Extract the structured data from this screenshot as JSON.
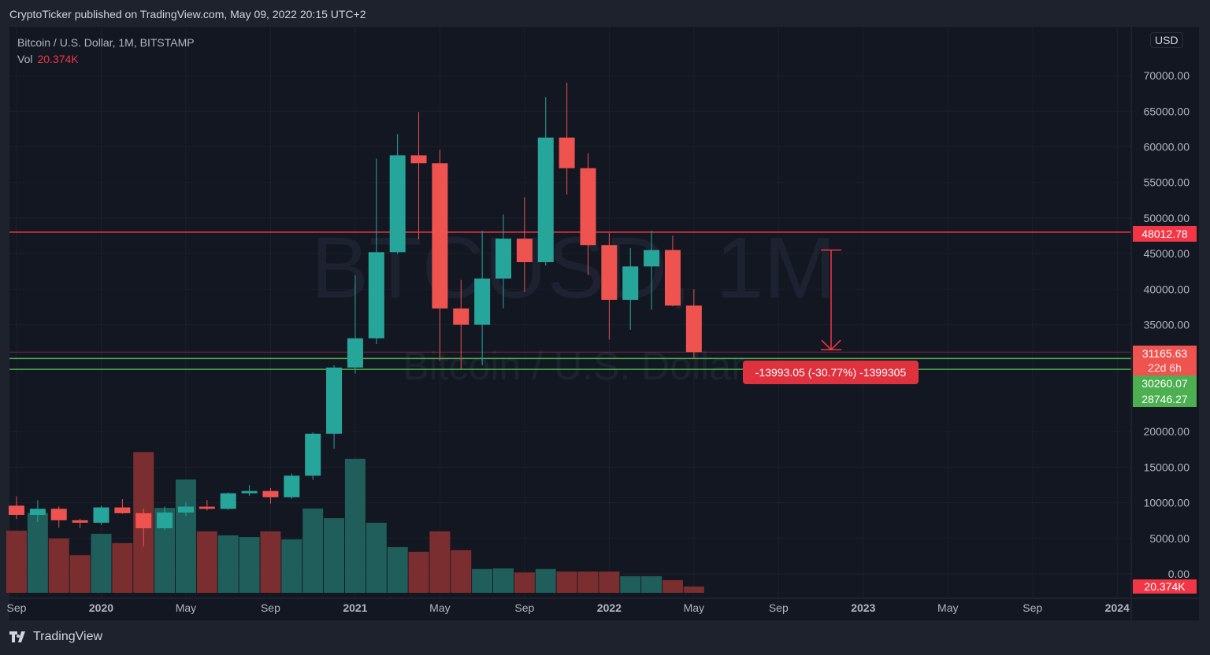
{
  "publisher": "CryptoTicker published on TradingView.com, May 09, 2022 20:15 UTC+2",
  "legend": {
    "title": "Bitcoin / U.S. Dollar, 1M, BITSTAMP",
    "vol_label": "Vol",
    "vol_value": "20.374K"
  },
  "watermark": {
    "symbol": "BTCUSD, 1M",
    "name": "Bitcoin / U.S. Dollar"
  },
  "currency_button": "USD",
  "footer": {
    "brand": "TradingView"
  },
  "colors": {
    "up": "#26a69a",
    "down": "#ef5350",
    "vol_up": "#1f5e5b",
    "vol_down": "#7a2e30",
    "resistance": "#f23645",
    "support": "#4caf50",
    "background": "#131722"
  },
  "price_labels": {
    "resistance": "48012.78",
    "last": "31165.63",
    "countdown": "22d 6h",
    "support_1": "30260.07",
    "support_2": "28746.27",
    "volume": "20.374K"
  },
  "measure": {
    "label": "-13993.05 (-30.77%) -1399305",
    "from": 45500,
    "to": 31500
  },
  "chart_data": {
    "type": "candlestick",
    "title": "Bitcoin / U.S. Dollar, 1M, BITSTAMP",
    "ylim": [
      0,
      75000
    ],
    "y_ticks": [
      "0.00",
      "5000.00",
      "10000.00",
      "15000.00",
      "20000.00",
      "35000.00",
      "40000.00",
      "45000.00",
      "50000.00",
      "55000.00",
      "60000.00",
      "65000.00",
      "70000.00"
    ],
    "x_ticks": [
      "Sep",
      "2020",
      "May",
      "Sep",
      "2021",
      "May",
      "Sep",
      "2022",
      "May",
      "Sep",
      "2023",
      "May",
      "Sep",
      "2024"
    ],
    "horizontal_lines": [
      48012.78,
      30260.07,
      28746.27,
      31165.63
    ],
    "months": [
      "2019-09",
      "2019-10",
      "2019-11",
      "2019-12",
      "2020-01",
      "2020-02",
      "2020-03",
      "2020-04",
      "2020-05",
      "2020-06",
      "2020-07",
      "2020-08",
      "2020-09",
      "2020-10",
      "2020-11",
      "2020-12",
      "2021-01",
      "2021-02",
      "2021-03",
      "2021-04",
      "2021-05",
      "2021-06",
      "2021-07",
      "2021-08",
      "2021-09",
      "2021-10",
      "2021-11",
      "2021-12",
      "2022-01",
      "2022-02",
      "2022-03",
      "2022-04",
      "2022-05"
    ],
    "ohlc": [
      [
        9590,
        10900,
        7730,
        8290
      ],
      [
        8290,
        10350,
        7300,
        9150
      ],
      [
        9150,
        9500,
        6500,
        7540
      ],
      [
        7540,
        7750,
        6430,
        7190
      ],
      [
        7190,
        9570,
        6850,
        9340
      ],
      [
        9340,
        10500,
        8450,
        8530
      ],
      [
        8530,
        9180,
        3850,
        6410
      ],
      [
        6410,
        9470,
        6150,
        8620
      ],
      [
        8620,
        10070,
        8120,
        9450
      ],
      [
        9450,
        10380,
        8900,
        9140
      ],
      [
        9140,
        11450,
        8980,
        11330
      ],
      [
        11330,
        12470,
        10960,
        11650
      ],
      [
        11650,
        12060,
        9880,
        10780
      ],
      [
        10780,
        14100,
        10550,
        13800
      ],
      [
        13800,
        19890,
        13210,
        19700
      ],
      [
        19700,
        29300,
        17600,
        28990
      ],
      [
        28990,
        41950,
        28130,
        33100
      ],
      [
        33100,
        58350,
        32300,
        45200
      ],
      [
        45200,
        61780,
        44950,
        58800
      ],
      [
        58800,
        64900,
        47000,
        57700
      ],
      [
        57700,
        59600,
        30000,
        37300
      ],
      [
        37300,
        41300,
        28800,
        35000
      ],
      [
        35000,
        48200,
        29300,
        41500
      ],
      [
        41500,
        50500,
        37300,
        47100
      ],
      [
        47100,
        52900,
        39600,
        43800
      ],
      [
        43800,
        67000,
        43300,
        61300
      ],
      [
        61300,
        69000,
        53300,
        57000
      ],
      [
        57000,
        59100,
        42000,
        46200
      ],
      [
        46200,
        47900,
        32900,
        38500
      ],
      [
        38500,
        45800,
        34300,
        43200
      ],
      [
        43200,
        48200,
        37100,
        45500
      ],
      [
        45500,
        47500,
        37600,
        37700
      ],
      [
        37700,
        40000,
        30260,
        31165.63
      ]
    ],
    "volume_k": [
      201,
      258,
      176,
      122,
      191,
      161,
      456,
      275,
      367,
      199,
      186,
      181,
      199,
      173,
      273,
      242,
      434,
      227,
      148,
      133,
      199,
      138,
      77,
      79,
      66,
      77,
      69,
      69,
      69,
      54,
      54,
      41,
      20.374
    ]
  }
}
